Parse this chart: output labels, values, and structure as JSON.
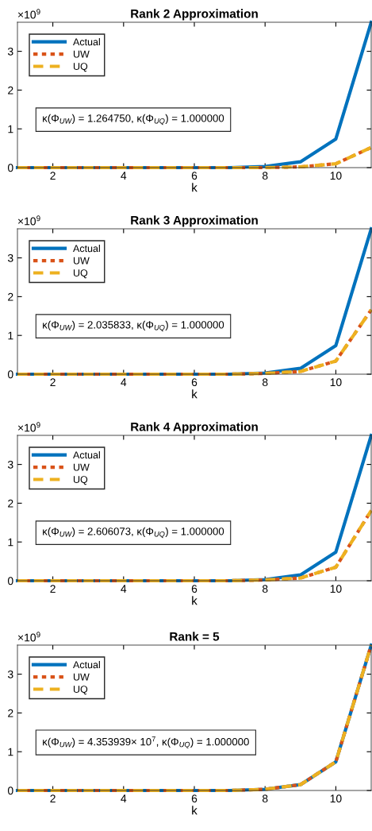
{
  "chart_data": [
    {
      "type": "line",
      "title": "Rank 2 Approximation",
      "xlabel": "k",
      "x": [
        1,
        2,
        3,
        4,
        5,
        6,
        7,
        8,
        9,
        10,
        11
      ],
      "xlim": [
        1,
        11
      ],
      "xticks": [
        2,
        4,
        6,
        8,
        10
      ],
      "ylim": [
        0,
        3.75
      ],
      "yticks": [
        0,
        1,
        2,
        3
      ],
      "grid": false,
      "legend": "top left",
      "annotations": [
        "×10$^{9}$",
        "κ(Φ$_{UW}$) = 1.264750, κ(Φ$_{UQ}$) = 1.000000"
      ],
      "series": [
        {
          "name": "Actual",
          "color": "#0072bd",
          "line_style": "solid",
          "values": [
            0,
            0,
            0,
            0,
            0,
            0,
            0,
            0.03,
            0.15,
            0.74,
            3.75
          ]
        },
        {
          "name": "UW",
          "color": "#d95319",
          "line_style": "dotted",
          "values": [
            0,
            0,
            0,
            0,
            0,
            0,
            0,
            0,
            0.02,
            0.1,
            0.52
          ]
        },
        {
          "name": "UQ",
          "color": "#edb120",
          "line_style": "dashed",
          "values": [
            0,
            0,
            0,
            0,
            0,
            0,
            0,
            0,
            0.02,
            0.1,
            0.52
          ]
        }
      ]
    },
    {
      "type": "line",
      "title": "Rank 3 Approximation",
      "xlabel": "k",
      "x": [
        1,
        2,
        3,
        4,
        5,
        6,
        7,
        8,
        9,
        10,
        11
      ],
      "xlim": [
        1,
        11
      ],
      "xticks": [
        2,
        4,
        6,
        8,
        10
      ],
      "ylim": [
        0,
        3.75
      ],
      "yticks": [
        0,
        1,
        2,
        3
      ],
      "grid": false,
      "legend": "top left",
      "annotations": [
        "×10$^{9}$",
        "κ(Φ$_{UW}$) = 2.035833, κ(Φ$_{UQ}$) = 1.000000"
      ],
      "series": [
        {
          "name": "Actual",
          "color": "#0072bd",
          "line_style": "solid",
          "values": [
            0,
            0,
            0,
            0,
            0,
            0,
            0,
            0.03,
            0.15,
            0.74,
            3.75
          ]
        },
        {
          "name": "UW",
          "color": "#d95319",
          "line_style": "dotted",
          "values": [
            0,
            0,
            0,
            0,
            0,
            0,
            0,
            0.02,
            0.07,
            0.34,
            1.66
          ]
        },
        {
          "name": "UQ",
          "color": "#edb120",
          "line_style": "dashed",
          "values": [
            0,
            0,
            0,
            0,
            0,
            0,
            0,
            0.02,
            0.07,
            0.34,
            1.66
          ]
        }
      ]
    },
    {
      "type": "line",
      "title": "Rank 4 Approximation",
      "xlabel": "k",
      "x": [
        1,
        2,
        3,
        4,
        5,
        6,
        7,
        8,
        9,
        10,
        11
      ],
      "xlim": [
        1,
        11
      ],
      "xticks": [
        2,
        4,
        6,
        8,
        10
      ],
      "ylim": [
        0,
        3.75
      ],
      "yticks": [
        0,
        1,
        2,
        3
      ],
      "grid": false,
      "legend": "top left",
      "annotations": [
        "×10$^{9}$",
        "κ(Φ$_{UW}$) = 2.606073, κ(Φ$_{UQ}$) = 1.000000"
      ],
      "series": [
        {
          "name": "Actual",
          "color": "#0072bd",
          "line_style": "solid",
          "values": [
            0,
            0,
            0,
            0,
            0,
            0,
            0,
            0.03,
            0.15,
            0.74,
            3.75
          ]
        },
        {
          "name": "UW",
          "color": "#d95319",
          "line_style": "dotted",
          "values": [
            0,
            0,
            0,
            0,
            0,
            0,
            0,
            0.02,
            0.07,
            0.35,
            1.81
          ]
        },
        {
          "name": "UQ",
          "color": "#edb120",
          "line_style": "dashed",
          "values": [
            0,
            0,
            0,
            0,
            0,
            0,
            0,
            0.02,
            0.07,
            0.35,
            1.81
          ]
        }
      ]
    },
    {
      "type": "line",
      "title": "Rank = 5",
      "xlabel": "k",
      "x": [
        1,
        2,
        3,
        4,
        5,
        6,
        7,
        8,
        9,
        10,
        11
      ],
      "xlim": [
        1,
        11
      ],
      "xticks": [
        2,
        4,
        6,
        8,
        10
      ],
      "ylim": [
        0,
        3.75
      ],
      "yticks": [
        0,
        1,
        2,
        3
      ],
      "grid": false,
      "legend": "top left",
      "annotations": [
        "×10$^{9}$",
        "κ(Φ$_{UW}$) = 4.353939× 10$^{7}$, κ(Φ$_{UQ}$) = 1.000000"
      ],
      "series": [
        {
          "name": "Actual",
          "color": "#0072bd",
          "line_style": "solid",
          "values": [
            0,
            0,
            0,
            0,
            0,
            0,
            0,
            0.03,
            0.15,
            0.74,
            3.75
          ]
        },
        {
          "name": "UW",
          "color": "#d95319",
          "line_style": "dotted",
          "values": [
            0,
            0,
            0,
            0,
            0,
            0,
            0,
            0.03,
            0.15,
            0.74,
            3.75
          ]
        },
        {
          "name": "UQ",
          "color": "#edb120",
          "line_style": "dashed",
          "values": [
            0,
            0,
            0,
            0,
            0,
            0,
            0,
            0.03,
            0.15,
            0.74,
            3.75
          ]
        }
      ]
    }
  ]
}
